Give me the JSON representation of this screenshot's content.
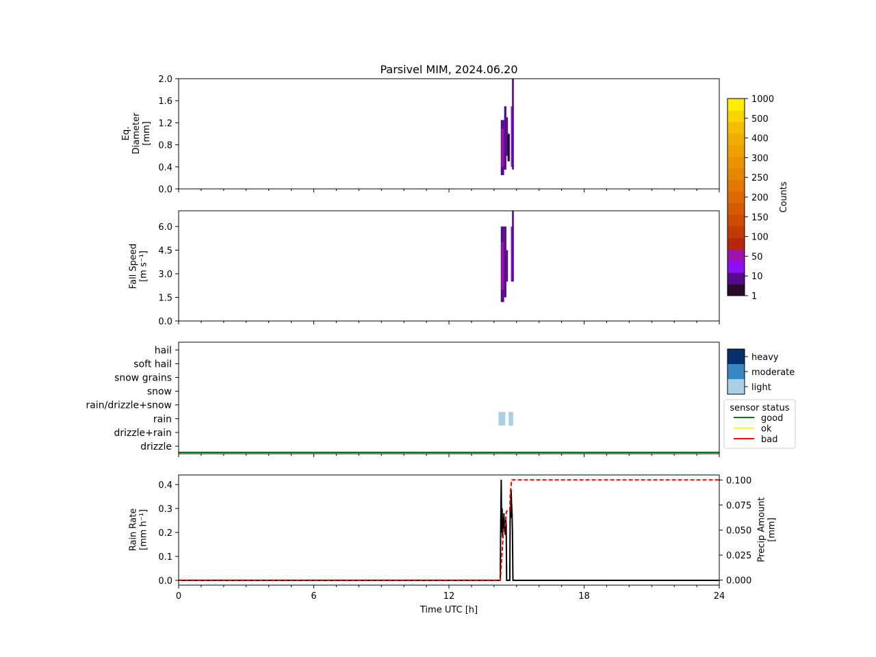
{
  "chart_data": [
    {
      "type": "heatmap",
      "title": "Parsivel MIM, 2024.06.20",
      "ylabel": "Eq.\nDiameter\n[mm]",
      "xlim": [
        0,
        24
      ],
      "ylim": [
        0,
        2.0
      ],
      "yticks": [
        "0.0",
        "0.4",
        "0.8",
        "1.2",
        "1.6",
        "2.0"
      ],
      "ytick_values": [
        0,
        0.4,
        0.8,
        1.2,
        1.6,
        2.0
      ],
      "cells": [
        {
          "t0": 14.3,
          "t1": 14.45,
          "y0": 0.25,
          "y1": 1.25,
          "count": 2
        },
        {
          "t0": 14.32,
          "t1": 14.42,
          "y0": 0.4,
          "y1": 1.1,
          "count": 12
        },
        {
          "t0": 14.45,
          "t1": 14.55,
          "y0": 0.35,
          "y1": 1.5,
          "count": 5
        },
        {
          "t0": 14.55,
          "t1": 14.62,
          "y0": 0.6,
          "y1": 1.3,
          "count": 3
        },
        {
          "t0": 14.6,
          "t1": 14.7,
          "y0": 0.5,
          "y1": 1.0,
          "count": 1
        },
        {
          "t0": 14.75,
          "t1": 14.85,
          "y0": 0.4,
          "y1": 1.5,
          "count": 8
        },
        {
          "t0": 14.8,
          "t1": 14.88,
          "y0": 0.35,
          "y1": 2.0,
          "count": 2
        }
      ]
    },
    {
      "type": "heatmap",
      "ylabel": "Fall Speed\n[m s⁻¹]",
      "xlim": [
        0,
        24
      ],
      "ylim": [
        0,
        7.0
      ],
      "yticks": [
        "0.0",
        "1.5",
        "3.0",
        "4.5",
        "6.0"
      ],
      "ytick_values": [
        0,
        1.5,
        3.0,
        4.5,
        6.0
      ],
      "cells": [
        {
          "t0": 14.3,
          "t1": 14.45,
          "y0": 1.2,
          "y1": 6.0,
          "count": 2
        },
        {
          "t0": 14.32,
          "t1": 14.42,
          "y0": 2.0,
          "y1": 5.0,
          "count": 12
        },
        {
          "t0": 14.45,
          "t1": 14.55,
          "y0": 1.5,
          "y1": 6.0,
          "count": 5
        },
        {
          "t0": 14.55,
          "t1": 14.62,
          "y0": 2.5,
          "y1": 4.5,
          "count": 3
        },
        {
          "t0": 14.75,
          "t1": 14.85,
          "y0": 2.5,
          "y1": 6.0,
          "count": 8
        },
        {
          "t0": 14.8,
          "t1": 14.88,
          "y0": 2.5,
          "y1": 7.0,
          "count": 2
        }
      ],
      "colorbar": {
        "label": "Counts",
        "ticks": [
          "1",
          "10",
          "50",
          "100",
          "150",
          "200",
          "250",
          "300",
          "400",
          "500",
          "1000"
        ],
        "colors": [
          "#2b0a2e",
          "#560b8c",
          "#8b10f5",
          "#a012b0",
          "#b8260e",
          "#c23a05",
          "#cc4c00",
          "#d45b00",
          "#dc6a00",
          "#e27800",
          "#e68500",
          "#ea9300",
          "#eea000",
          "#f2ae00",
          "#f6bc00",
          "#fad400",
          "#ffee00"
        ]
      }
    },
    {
      "type": "heatmap",
      "categories": [
        "drizzle",
        "drizzle+rain",
        "rain",
        "rain/drizzle+snow",
        "snow",
        "snow grains",
        "soft hail",
        "hail"
      ],
      "xlim": [
        0,
        24
      ],
      "cells": [
        {
          "t0": 14.2,
          "t1": 14.5,
          "category": "rain",
          "intensity": "light"
        },
        {
          "t0": 14.65,
          "t1": 14.85,
          "category": "rain",
          "intensity": "light"
        }
      ],
      "intensity_legend": [
        "heavy",
        "moderate",
        "light"
      ],
      "intensity_colors": {
        "heavy": "#08306b",
        "moderate": "#3787c0",
        "light": "#abd0e6"
      },
      "status_legend_title": "sensor status",
      "status_legend": [
        {
          "name": "good",
          "color": "#008000"
        },
        {
          "name": "ok",
          "color": "#ffff00"
        },
        {
          "name": "bad",
          "color": "#ff0000"
        }
      ],
      "status_line": [
        {
          "t0": 0,
          "t1": 24,
          "status": "good"
        }
      ]
    },
    {
      "type": "line",
      "xlabel": "Time UTC [h]",
      "ylabel": "Rain Rate\n[mm h⁻¹]",
      "y2label": "Precip Amount\n[mm]",
      "xlim": [
        0,
        24
      ],
      "ylim": [
        -0.02,
        0.44
      ],
      "y2lim": [
        -0.005,
        0.105
      ],
      "xticks": [
        0,
        6,
        12,
        18,
        24
      ],
      "yticks": [
        "0.0",
        "0.1",
        "0.2",
        "0.3",
        "0.4"
      ],
      "ytick_values": [
        0,
        0.1,
        0.2,
        0.3,
        0.4
      ],
      "y2ticks": [
        "0.000",
        "0.025",
        "0.050",
        "0.075",
        "0.100"
      ],
      "y2tick_values": [
        0,
        0.025,
        0.05,
        0.075,
        0.1
      ],
      "series": [
        {
          "color": "#000000",
          "style": "solid",
          "axis": "left",
          "x": [
            0,
            14.28,
            14.3,
            14.32,
            14.34,
            14.36,
            14.38,
            14.4,
            14.42,
            14.44,
            14.46,
            14.48,
            14.5,
            14.52,
            14.54,
            14.56,
            14.58,
            14.6,
            14.62,
            14.64,
            14.66,
            14.68,
            14.7,
            14.72,
            14.74,
            14.76,
            14.78,
            14.8,
            14.82,
            14.84,
            14.86,
            14.88,
            24
          ],
          "y": [
            0,
            0,
            0.25,
            0.42,
            0.2,
            0.3,
            0.18,
            0.26,
            0.2,
            0.28,
            0.22,
            0.24,
            0.19,
            0.26,
            0.23,
            0,
            0,
            0,
            0,
            0,
            0,
            0,
            0,
            0.3,
            0.26,
            0.38,
            0.32,
            0.28,
            0.2,
            0,
            0,
            0,
            0
          ]
        },
        {
          "color": "#ff0000",
          "style": "dashed",
          "axis": "right",
          "x": [
            0,
            14.28,
            14.35,
            14.42,
            14.5,
            14.55,
            14.6,
            14.7,
            14.72,
            14.78,
            14.85,
            15.0,
            24
          ],
          "y": [
            0,
            0,
            0.025,
            0.05,
            0.055,
            0.068,
            0.07,
            0.07,
            0.085,
            0.1,
            0.1,
            0.1,
            0.1
          ]
        }
      ]
    }
  ]
}
